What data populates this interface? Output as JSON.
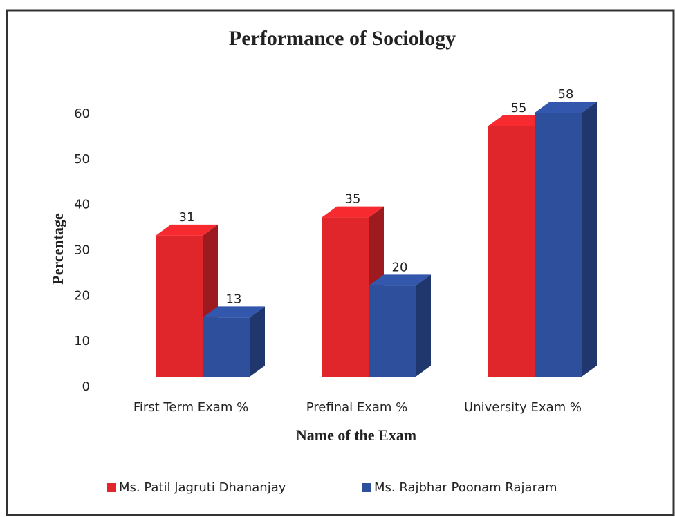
{
  "chart_data": {
    "type": "bar3d",
    "title": "Performance of Sociology",
    "x_label": "Name of the Exam",
    "y_label": "Percentage",
    "categories": [
      "First Term Exam %",
      "Prefinal Exam %",
      "University Exam %"
    ],
    "series": [
      {
        "name": "Ms. Patil Jagruti Dhananjay",
        "color": "#e0262b",
        "values": [
          31,
          35,
          55
        ]
      },
      {
        "name": "Ms. Rajbhar Poonam Rajaram",
        "color": "#2d4f9c",
        "values": [
          13,
          20,
          58
        ]
      }
    ],
    "ylim": [
      0,
      60
    ],
    "yticks": [
      0,
      10,
      20,
      30,
      40,
      50,
      60
    ],
    "legend": "bottom"
  }
}
